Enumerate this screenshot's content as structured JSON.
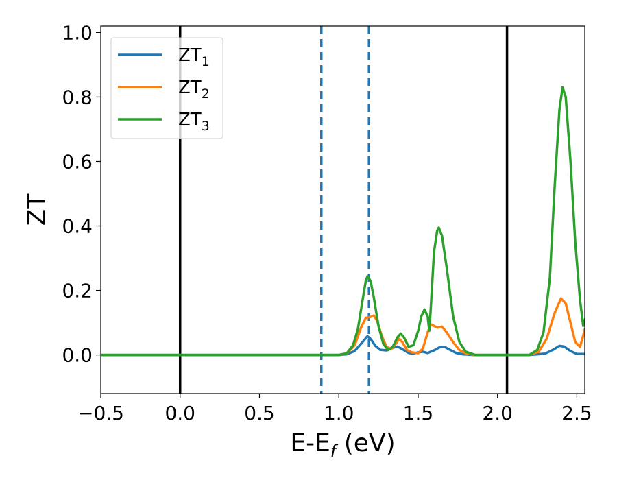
{
  "chart_data": {
    "type": "line",
    "title": "",
    "xlabel": {
      "main": "E-E",
      "sub": "f",
      "rest": " (eV)"
    },
    "ylabel": "ZT",
    "xlim": [
      -0.5,
      2.55
    ],
    "ylim": [
      -0.12,
      1.02
    ],
    "xticks": [
      -0.5,
      0.0,
      0.5,
      1.0,
      1.5,
      2.0,
      2.5
    ],
    "xtick_labels": [
      "−0.5",
      "0.0",
      "0.5",
      "1.0",
      "1.5",
      "2.0",
      "2.5"
    ],
    "yticks": [
      0.0,
      0.2,
      0.4,
      0.6,
      0.8,
      1.0
    ],
    "ytick_labels": [
      "0.0",
      "0.2",
      "0.4",
      "0.6",
      "0.8",
      "1.0"
    ],
    "grid": false,
    "legend_position": "top-left",
    "vlines": [
      {
        "x": 0.0,
        "style": "solid",
        "color": "#000000"
      },
      {
        "x": 2.06,
        "style": "solid",
        "color": "#000000"
      },
      {
        "x": 0.89,
        "style": "dashed",
        "color": "#1f77b4"
      },
      {
        "x": 1.19,
        "style": "dashed",
        "color": "#1f77b4"
      }
    ],
    "series": [
      {
        "name": "ZT",
        "name_sub": "1",
        "color": "#1f77b4",
        "points": [
          [
            -0.5,
            0
          ],
          [
            1.0,
            0
          ],
          [
            1.05,
            0.002
          ],
          [
            1.1,
            0.012
          ],
          [
            1.15,
            0.04
          ],
          [
            1.18,
            0.058
          ],
          [
            1.2,
            0.05
          ],
          [
            1.23,
            0.028
          ],
          [
            1.26,
            0.016
          ],
          [
            1.3,
            0.014
          ],
          [
            1.34,
            0.022
          ],
          [
            1.37,
            0.026
          ],
          [
            1.4,
            0.018
          ],
          [
            1.44,
            0.006
          ],
          [
            1.47,
            0.004
          ],
          [
            1.5,
            0.008
          ],
          [
            1.53,
            0.01
          ],
          [
            1.56,
            0.006
          ],
          [
            1.6,
            0.014
          ],
          [
            1.64,
            0.025
          ],
          [
            1.67,
            0.024
          ],
          [
            1.7,
            0.016
          ],
          [
            1.74,
            0.006
          ],
          [
            1.78,
            0.002
          ],
          [
            1.85,
            0
          ],
          [
            2.2,
            0
          ],
          [
            2.3,
            0.004
          ],
          [
            2.35,
            0.016
          ],
          [
            2.39,
            0.028
          ],
          [
            2.42,
            0.026
          ],
          [
            2.46,
            0.012
          ],
          [
            2.5,
            0.003
          ],
          [
            2.55,
            0.003
          ]
        ]
      },
      {
        "name": "ZT",
        "name_sub": "2",
        "color": "#ff7f0e",
        "points": [
          [
            -0.5,
            0
          ],
          [
            1.0,
            0
          ],
          [
            1.05,
            0.004
          ],
          [
            1.1,
            0.03
          ],
          [
            1.14,
            0.085
          ],
          [
            1.17,
            0.115
          ],
          [
            1.2,
            0.118
          ],
          [
            1.22,
            0.122
          ],
          [
            1.24,
            0.108
          ],
          [
            1.27,
            0.06
          ],
          [
            1.3,
            0.025
          ],
          [
            1.33,
            0.018
          ],
          [
            1.36,
            0.035
          ],
          [
            1.38,
            0.05
          ],
          [
            1.4,
            0.04
          ],
          [
            1.43,
            0.015
          ],
          [
            1.46,
            0.008
          ],
          [
            1.5,
            0.005
          ],
          [
            1.53,
            0.02
          ],
          [
            1.56,
            0.07
          ],
          [
            1.58,
            0.095
          ],
          [
            1.6,
            0.09
          ],
          [
            1.62,
            0.085
          ],
          [
            1.65,
            0.088
          ],
          [
            1.68,
            0.07
          ],
          [
            1.72,
            0.04
          ],
          [
            1.76,
            0.015
          ],
          [
            1.8,
            0.005
          ],
          [
            1.86,
            0
          ],
          [
            2.2,
            0
          ],
          [
            2.26,
            0.01
          ],
          [
            2.31,
            0.05
          ],
          [
            2.36,
            0.13
          ],
          [
            2.4,
            0.175
          ],
          [
            2.43,
            0.16
          ],
          [
            2.46,
            0.1
          ],
          [
            2.49,
            0.04
          ],
          [
            2.52,
            0.025
          ],
          [
            2.54,
            0.06
          ],
          [
            2.55,
            0.08
          ]
        ]
      },
      {
        "name": "ZT",
        "name_sub": "3",
        "color": "#2ca02c",
        "points": [
          [
            -0.5,
            0
          ],
          [
            1.0,
            0
          ],
          [
            1.05,
            0.005
          ],
          [
            1.09,
            0.03
          ],
          [
            1.12,
            0.08
          ],
          [
            1.15,
            0.17
          ],
          [
            1.17,
            0.23
          ],
          [
            1.18,
            0.243
          ],
          [
            1.2,
            0.23
          ],
          [
            1.22,
            0.18
          ],
          [
            1.25,
            0.09
          ],
          [
            1.28,
            0.035
          ],
          [
            1.31,
            0.015
          ],
          [
            1.34,
            0.025
          ],
          [
            1.37,
            0.055
          ],
          [
            1.39,
            0.066
          ],
          [
            1.41,
            0.055
          ],
          [
            1.44,
            0.025
          ],
          [
            1.47,
            0.03
          ],
          [
            1.5,
            0.075
          ],
          [
            1.52,
            0.12
          ],
          [
            1.54,
            0.141
          ],
          [
            1.56,
            0.12
          ],
          [
            1.57,
            0.075
          ],
          [
            1.58,
            0.15
          ],
          [
            1.6,
            0.32
          ],
          [
            1.62,
            0.385
          ],
          [
            1.63,
            0.395
          ],
          [
            1.65,
            0.37
          ],
          [
            1.68,
            0.27
          ],
          [
            1.72,
            0.12
          ],
          [
            1.76,
            0.04
          ],
          [
            1.8,
            0.01
          ],
          [
            1.86,
            0
          ],
          [
            2.2,
            0
          ],
          [
            2.25,
            0.015
          ],
          [
            2.29,
            0.07
          ],
          [
            2.33,
            0.24
          ],
          [
            2.36,
            0.52
          ],
          [
            2.39,
            0.76
          ],
          [
            2.41,
            0.83
          ],
          [
            2.43,
            0.8
          ],
          [
            2.46,
            0.6
          ],
          [
            2.49,
            0.35
          ],
          [
            2.52,
            0.17
          ],
          [
            2.54,
            0.09
          ],
          [
            2.55,
            0.11
          ]
        ]
      }
    ]
  }
}
